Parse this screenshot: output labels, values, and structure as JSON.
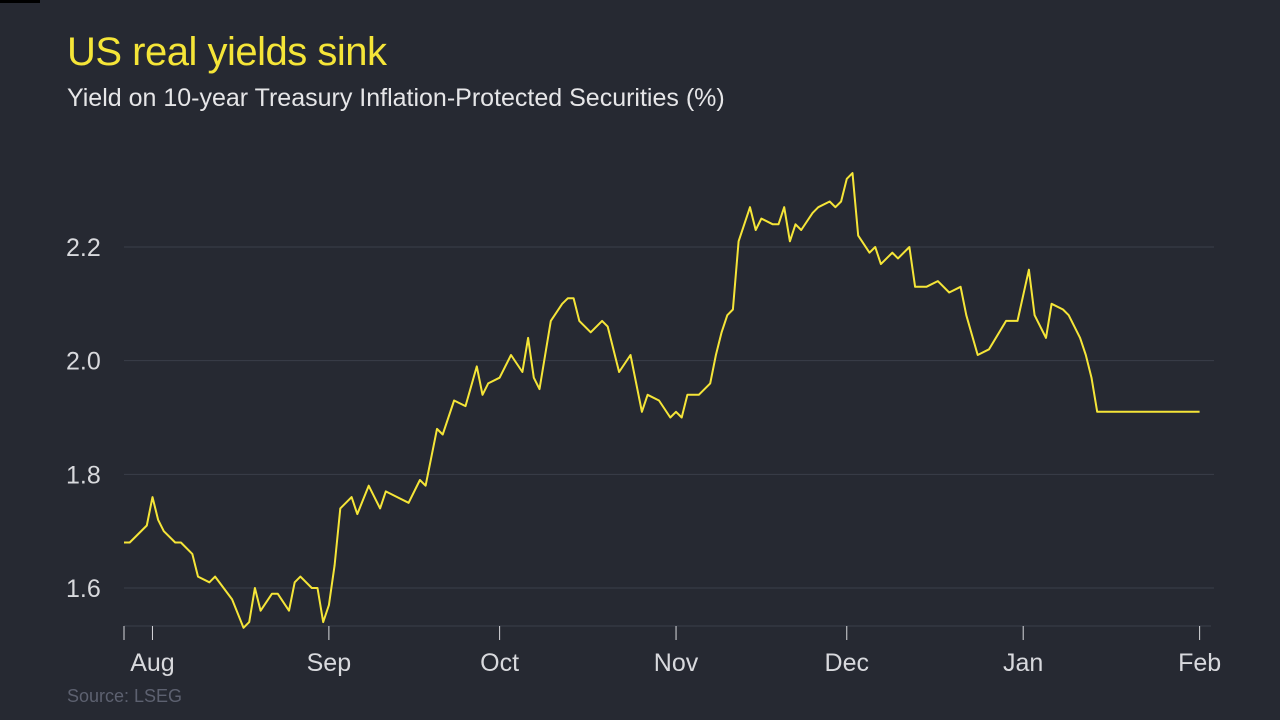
{
  "header": {
    "title": "US real yields sink",
    "subtitle": "Yield on 10-year Treasury Inflation-Protected Securities (%)"
  },
  "footer": {
    "source": "Source: LSEG"
  },
  "colors": {
    "background": "#262932",
    "line": "#f5e538",
    "grid": "#3a3e49",
    "title": "#f5e538"
  },
  "chart_data": {
    "type": "line",
    "title": "US real yields sink",
    "subtitle": "Yield on 10-year Treasury Inflation-Protected Securities (%)",
    "xlabel": "",
    "ylabel": "",
    "ylim": [
      1.53,
      2.34
    ],
    "yticks": [
      1.6,
      1.8,
      2.0,
      2.2
    ],
    "ytick_labels": [
      "1.6",
      "1.8",
      "2.0",
      "2.2"
    ],
    "grid": true,
    "x_categories": [
      "Aug",
      "Sep",
      "Oct",
      "Nov",
      "Dec",
      "Jan",
      "Feb"
    ],
    "x_range_days": [
      -5,
      186
    ],
    "x_ticks_days": [
      0,
      31,
      61,
      92,
      122,
      153,
      184
    ],
    "series": [
      {
        "name": "",
        "x_days": [
          -5,
          -4,
          -3,
          -1,
          0,
          1,
          2,
          4,
          5,
          7,
          8,
          10,
          11,
          14,
          16,
          17,
          18,
          19,
          21,
          22,
          24,
          25,
          26,
          28,
          29,
          30,
          31,
          32,
          33,
          35,
          36,
          38,
          40,
          41,
          43,
          45,
          47,
          48,
          50,
          51,
          53,
          55,
          57,
          58,
          59,
          61,
          63,
          65,
          66,
          67,
          68,
          70,
          72,
          73,
          74,
          75,
          77,
          79,
          80,
          82,
          84,
          86,
          87,
          89,
          91,
          92,
          93,
          94,
          96,
          98,
          99,
          100,
          101,
          102,
          103,
          105,
          106,
          107,
          109,
          110,
          111,
          112,
          113,
          114,
          116,
          117,
          119,
          120,
          121,
          122,
          123,
          124,
          126,
          127,
          128,
          130,
          131,
          133,
          134,
          135,
          136,
          138,
          140,
          142,
          143,
          145,
          147,
          150,
          151,
          152,
          154,
          155,
          157,
          158,
          160,
          161,
          162,
          163,
          164,
          165,
          166,
          167,
          168,
          169,
          171,
          174,
          176,
          178,
          179,
          180,
          182,
          184
        ],
        "values": [
          1.68,
          1.68,
          1.69,
          1.71,
          1.76,
          1.72,
          1.7,
          1.68,
          1.68,
          1.66,
          1.62,
          1.61,
          1.62,
          1.58,
          1.53,
          1.54,
          1.6,
          1.56,
          1.59,
          1.59,
          1.56,
          1.61,
          1.62,
          1.6,
          1.6,
          1.54,
          1.57,
          1.64,
          1.74,
          1.76,
          1.73,
          1.78,
          1.74,
          1.77,
          1.76,
          1.75,
          1.79,
          1.78,
          1.88,
          1.87,
          1.93,
          1.92,
          1.99,
          1.94,
          1.96,
          1.97,
          2.01,
          1.98,
          2.04,
          1.97,
          1.95,
          2.07,
          2.1,
          2.11,
          2.11,
          2.07,
          2.05,
          2.07,
          2.06,
          1.98,
          2.01,
          1.91,
          1.94,
          1.93,
          1.9,
          1.91,
          1.9,
          1.94,
          1.94,
          1.96,
          2.01,
          2.05,
          2.08,
          2.09,
          2.21,
          2.27,
          2.23,
          2.25,
          2.24,
          2.24,
          2.27,
          2.21,
          2.24,
          2.23,
          2.26,
          2.27,
          2.28,
          2.27,
          2.28,
          2.32,
          2.33,
          2.22,
          2.19,
          2.2,
          2.17,
          2.19,
          2.18,
          2.2,
          2.13,
          2.13,
          2.13,
          2.14,
          2.12,
          2.13,
          2.08,
          2.01,
          2.02,
          2.07,
          2.07,
          2.07,
          2.16,
          2.08,
          2.04,
          2.1,
          2.09,
          2.08,
          2.06,
          2.04,
          2.01,
          1.97,
          1.91,
          1.91,
          1.91,
          1.91,
          1.91,
          1.91,
          1.91,
          1.91,
          1.91,
          1.91,
          1.91,
          1.91
        ]
      }
    ]
  }
}
